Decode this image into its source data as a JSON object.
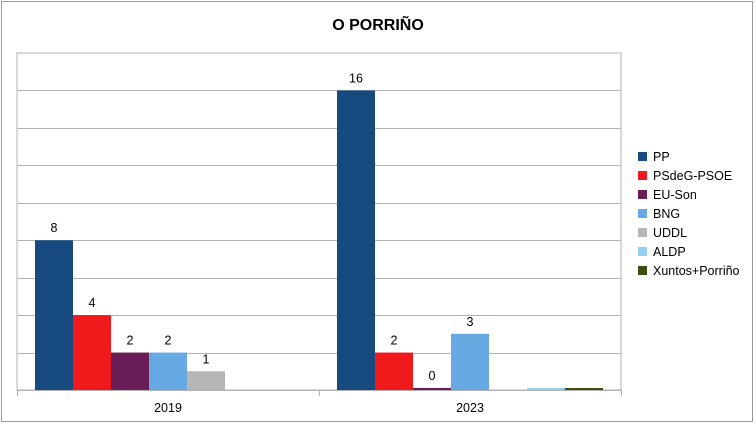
{
  "chart_data": {
    "type": "bar",
    "title": "O PORRIÑO",
    "categories": [
      "2019",
      "2023"
    ],
    "ylim": [
      0,
      16
    ],
    "y_axis_labels_shown": false,
    "grid": true,
    "legend_position": "right",
    "series": [
      {
        "name": "PP",
        "color": "#174a7e",
        "values": [
          8,
          16
        ],
        "labels": [
          "8",
          "16"
        ]
      },
      {
        "name": "PSdeG-PSOE",
        "color": "#f0191c",
        "values": [
          4,
          2
        ],
        "labels": [
          "4",
          "2"
        ]
      },
      {
        "name": "EU-Son",
        "color": "#6b1d57",
        "values": [
          2,
          0
        ],
        "labels": [
          "2",
          "0"
        ]
      },
      {
        "name": "BNG",
        "color": "#67a9e2",
        "values": [
          2,
          3
        ],
        "labels": [
          "2",
          "3"
        ]
      },
      {
        "name": "UDDL",
        "color": "#b6b6b6",
        "values": [
          1,
          null
        ],
        "labels": [
          "1",
          ""
        ]
      },
      {
        "name": "ALDP",
        "color": "#92cff3",
        "values": [
          null,
          0
        ],
        "labels": [
          "",
          ""
        ]
      },
      {
        "name": "Xuntos+Porriño",
        "color": "#3b4d12",
        "values": [
          null,
          0
        ],
        "labels": [
          "",
          ""
        ]
      }
    ]
  }
}
